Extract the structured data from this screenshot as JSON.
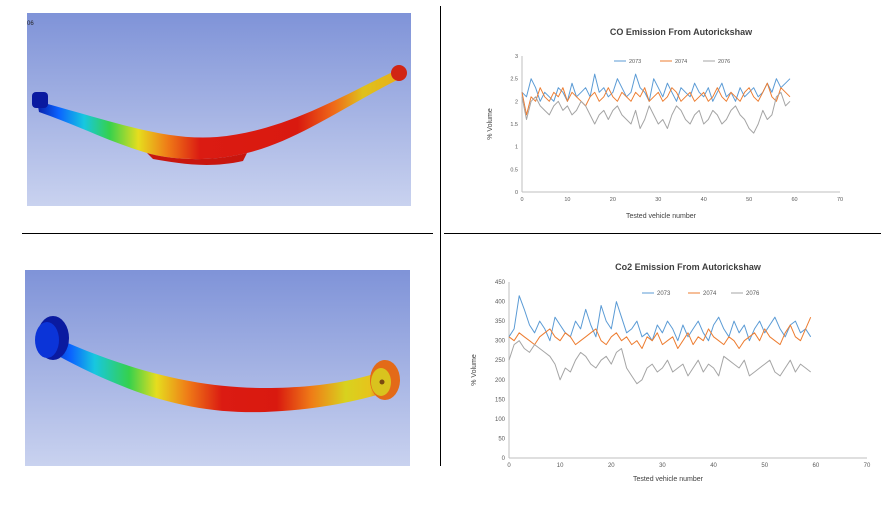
{
  "figures": {
    "top_left": {
      "corner_text": "06"
    }
  },
  "chart_data": [
    {
      "type": "line",
      "title": "CO Emission From Autorickshaw",
      "xlabel": "Tested vehicle number",
      "ylabel": "% Volume",
      "xlim": [
        0,
        70
      ],
      "ylim": [
        0,
        3
      ],
      "xticks": [
        0,
        10,
        20,
        30,
        40,
        50,
        60,
        70
      ],
      "yticks": [
        0,
        0.5,
        1,
        1.5,
        2,
        2.5,
        3
      ],
      "yticklabels": [
        "0",
        "0.5",
        "1",
        "1.5",
        "2",
        "2.5",
        "3"
      ],
      "legend_position": "top",
      "grid": false,
      "x": [
        0,
        1,
        2,
        3,
        4,
        5,
        6,
        7,
        8,
        9,
        10,
        11,
        12,
        13,
        14,
        15,
        16,
        17,
        18,
        19,
        20,
        21,
        22,
        23,
        24,
        25,
        26,
        27,
        28,
        29,
        30,
        31,
        32,
        33,
        34,
        35,
        36,
        37,
        38,
        39,
        40,
        41,
        42,
        43,
        44,
        45,
        46,
        47,
        48,
        49,
        50,
        51,
        52,
        53,
        54,
        55,
        56,
        57,
        58,
        59
      ],
      "series": [
        {
          "name": "2073",
          "color": "#5b9bd5",
          "values": [
            2.2,
            2.1,
            2.5,
            2.3,
            2.0,
            2.2,
            2.1,
            2.0,
            2.3,
            2.2,
            2.0,
            2.4,
            2.1,
            2.2,
            2.3,
            2.1,
            2.6,
            2.2,
            2.3,
            2.1,
            2.2,
            2.5,
            2.3,
            2.1,
            2.2,
            2.6,
            2.3,
            2.2,
            2.0,
            2.5,
            2.3,
            2.1,
            2.4,
            2.2,
            2.0,
            2.3,
            2.2,
            2.1,
            2.4,
            2.2,
            2.1,
            2.3,
            2.0,
            2.2,
            2.4,
            2.1,
            2.2,
            2.0,
            2.3,
            2.1,
            2.2,
            2.3,
            2.1,
            2.2,
            2.4,
            2.2,
            2.5,
            2.3,
            2.4,
            2.5
          ]
        },
        {
          "name": "2074",
          "color": "#ed7d31",
          "values": [
            2.2,
            1.7,
            2.1,
            2.0,
            2.3,
            2.1,
            2.0,
            2.2,
            2.1,
            2.3,
            2.0,
            2.2,
            2.1,
            2.0,
            1.9,
            2.1,
            2.2,
            2.0,
            2.1,
            2.3,
            2.1,
            2.0,
            2.2,
            2.1,
            2.0,
            2.2,
            2.1,
            2.3,
            2.0,
            2.1,
            2.2,
            2.0,
            2.1,
            2.3,
            2.2,
            2.0,
            2.1,
            2.2,
            2.0,
            2.1,
            2.2,
            2.0,
            2.1,
            2.3,
            2.1,
            2.0,
            2.2,
            2.1,
            2.0,
            2.2,
            2.3,
            2.1,
            2.0,
            2.2,
            2.4,
            2.1,
            2.0,
            2.3,
            2.2,
            2.1
          ]
        },
        {
          "name": "2076",
          "color": "#a5a5a5",
          "values": [
            2.1,
            1.6,
            2.0,
            2.1,
            1.9,
            1.8,
            1.7,
            1.9,
            2.0,
            1.8,
            1.9,
            1.7,
            1.8,
            2.0,
            1.9,
            1.7,
            1.5,
            1.7,
            1.8,
            1.6,
            1.8,
            1.9,
            1.7,
            1.6,
            1.5,
            1.8,
            1.4,
            1.6,
            1.9,
            1.7,
            1.5,
            1.6,
            1.4,
            1.7,
            1.9,
            1.8,
            1.6,
            1.5,
            1.7,
            1.8,
            1.5,
            1.6,
            1.8,
            1.7,
            1.5,
            1.6,
            1.8,
            1.9,
            1.7,
            1.6,
            1.4,
            1.3,
            1.5,
            1.8,
            1.6,
            1.7,
            2.1,
            2.2,
            1.9,
            2.0
          ]
        }
      ]
    },
    {
      "type": "line",
      "title": "Co2 Emission From Autorickshaw",
      "xlabel": "Tested vehicle number",
      "ylabel": "% Volume",
      "xlim": [
        0,
        70
      ],
      "ylim": [
        0,
        450
      ],
      "xticks": [
        0,
        10,
        20,
        30,
        40,
        50,
        60,
        70
      ],
      "yticks": [
        0,
        50,
        100,
        150,
        200,
        250,
        300,
        350,
        400,
        450
      ],
      "yticklabels": [
        "0",
        "50",
        "100",
        "150",
        "200",
        "250",
        "300",
        "350",
        "400",
        "450"
      ],
      "legend_position": "top",
      "grid": false,
      "x": [
        0,
        1,
        2,
        3,
        4,
        5,
        6,
        7,
        8,
        9,
        10,
        11,
        12,
        13,
        14,
        15,
        16,
        17,
        18,
        19,
        20,
        21,
        22,
        23,
        24,
        25,
        26,
        27,
        28,
        29,
        30,
        31,
        32,
        33,
        34,
        35,
        36,
        37,
        38,
        39,
        40,
        41,
        42,
        43,
        44,
        45,
        46,
        47,
        48,
        49,
        50,
        51,
        52,
        53,
        54,
        55,
        56,
        57,
        58,
        59
      ],
      "series": [
        {
          "name": "2073",
          "color": "#5b9bd5",
          "values": [
            310,
            330,
            415,
            380,
            340,
            320,
            350,
            330,
            300,
            360,
            340,
            320,
            310,
            350,
            330,
            380,
            340,
            310,
            390,
            350,
            330,
            400,
            360,
            320,
            330,
            350,
            310,
            320,
            300,
            340,
            320,
            350,
            330,
            300,
            340,
            310,
            330,
            350,
            320,
            300,
            340,
            360,
            330,
            310,
            350,
            320,
            340,
            300,
            330,
            350,
            320,
            340,
            360,
            330,
            310,
            340,
            350,
            320,
            330,
            310
          ]
        },
        {
          "name": "2074",
          "color": "#ed7d31",
          "values": [
            310,
            300,
            320,
            310,
            300,
            290,
            310,
            320,
            330,
            310,
            300,
            320,
            310,
            290,
            300,
            310,
            320,
            330,
            300,
            290,
            310,
            320,
            300,
            310,
            290,
            300,
            280,
            310,
            300,
            320,
            290,
            300,
            310,
            280,
            300,
            320,
            290,
            310,
            300,
            330,
            310,
            300,
            290,
            310,
            300,
            280,
            300,
            310,
            320,
            300,
            330,
            310,
            300,
            290,
            320,
            340,
            310,
            300,
            330,
            360
          ]
        },
        {
          "name": "2076",
          "color": "#a5a5a5",
          "values": [
            250,
            290,
            300,
            280,
            270,
            290,
            280,
            270,
            260,
            240,
            200,
            230,
            220,
            250,
            270,
            260,
            240,
            230,
            250,
            260,
            240,
            270,
            280,
            230,
            210,
            190,
            200,
            230,
            240,
            220,
            230,
            250,
            220,
            230,
            240,
            210,
            230,
            250,
            220,
            240,
            230,
            210,
            260,
            250,
            240,
            230,
            250,
            210,
            220,
            230,
            240,
            250,
            220,
            210,
            230,
            250,
            220,
            240,
            230,
            220
          ]
        }
      ]
    }
  ]
}
